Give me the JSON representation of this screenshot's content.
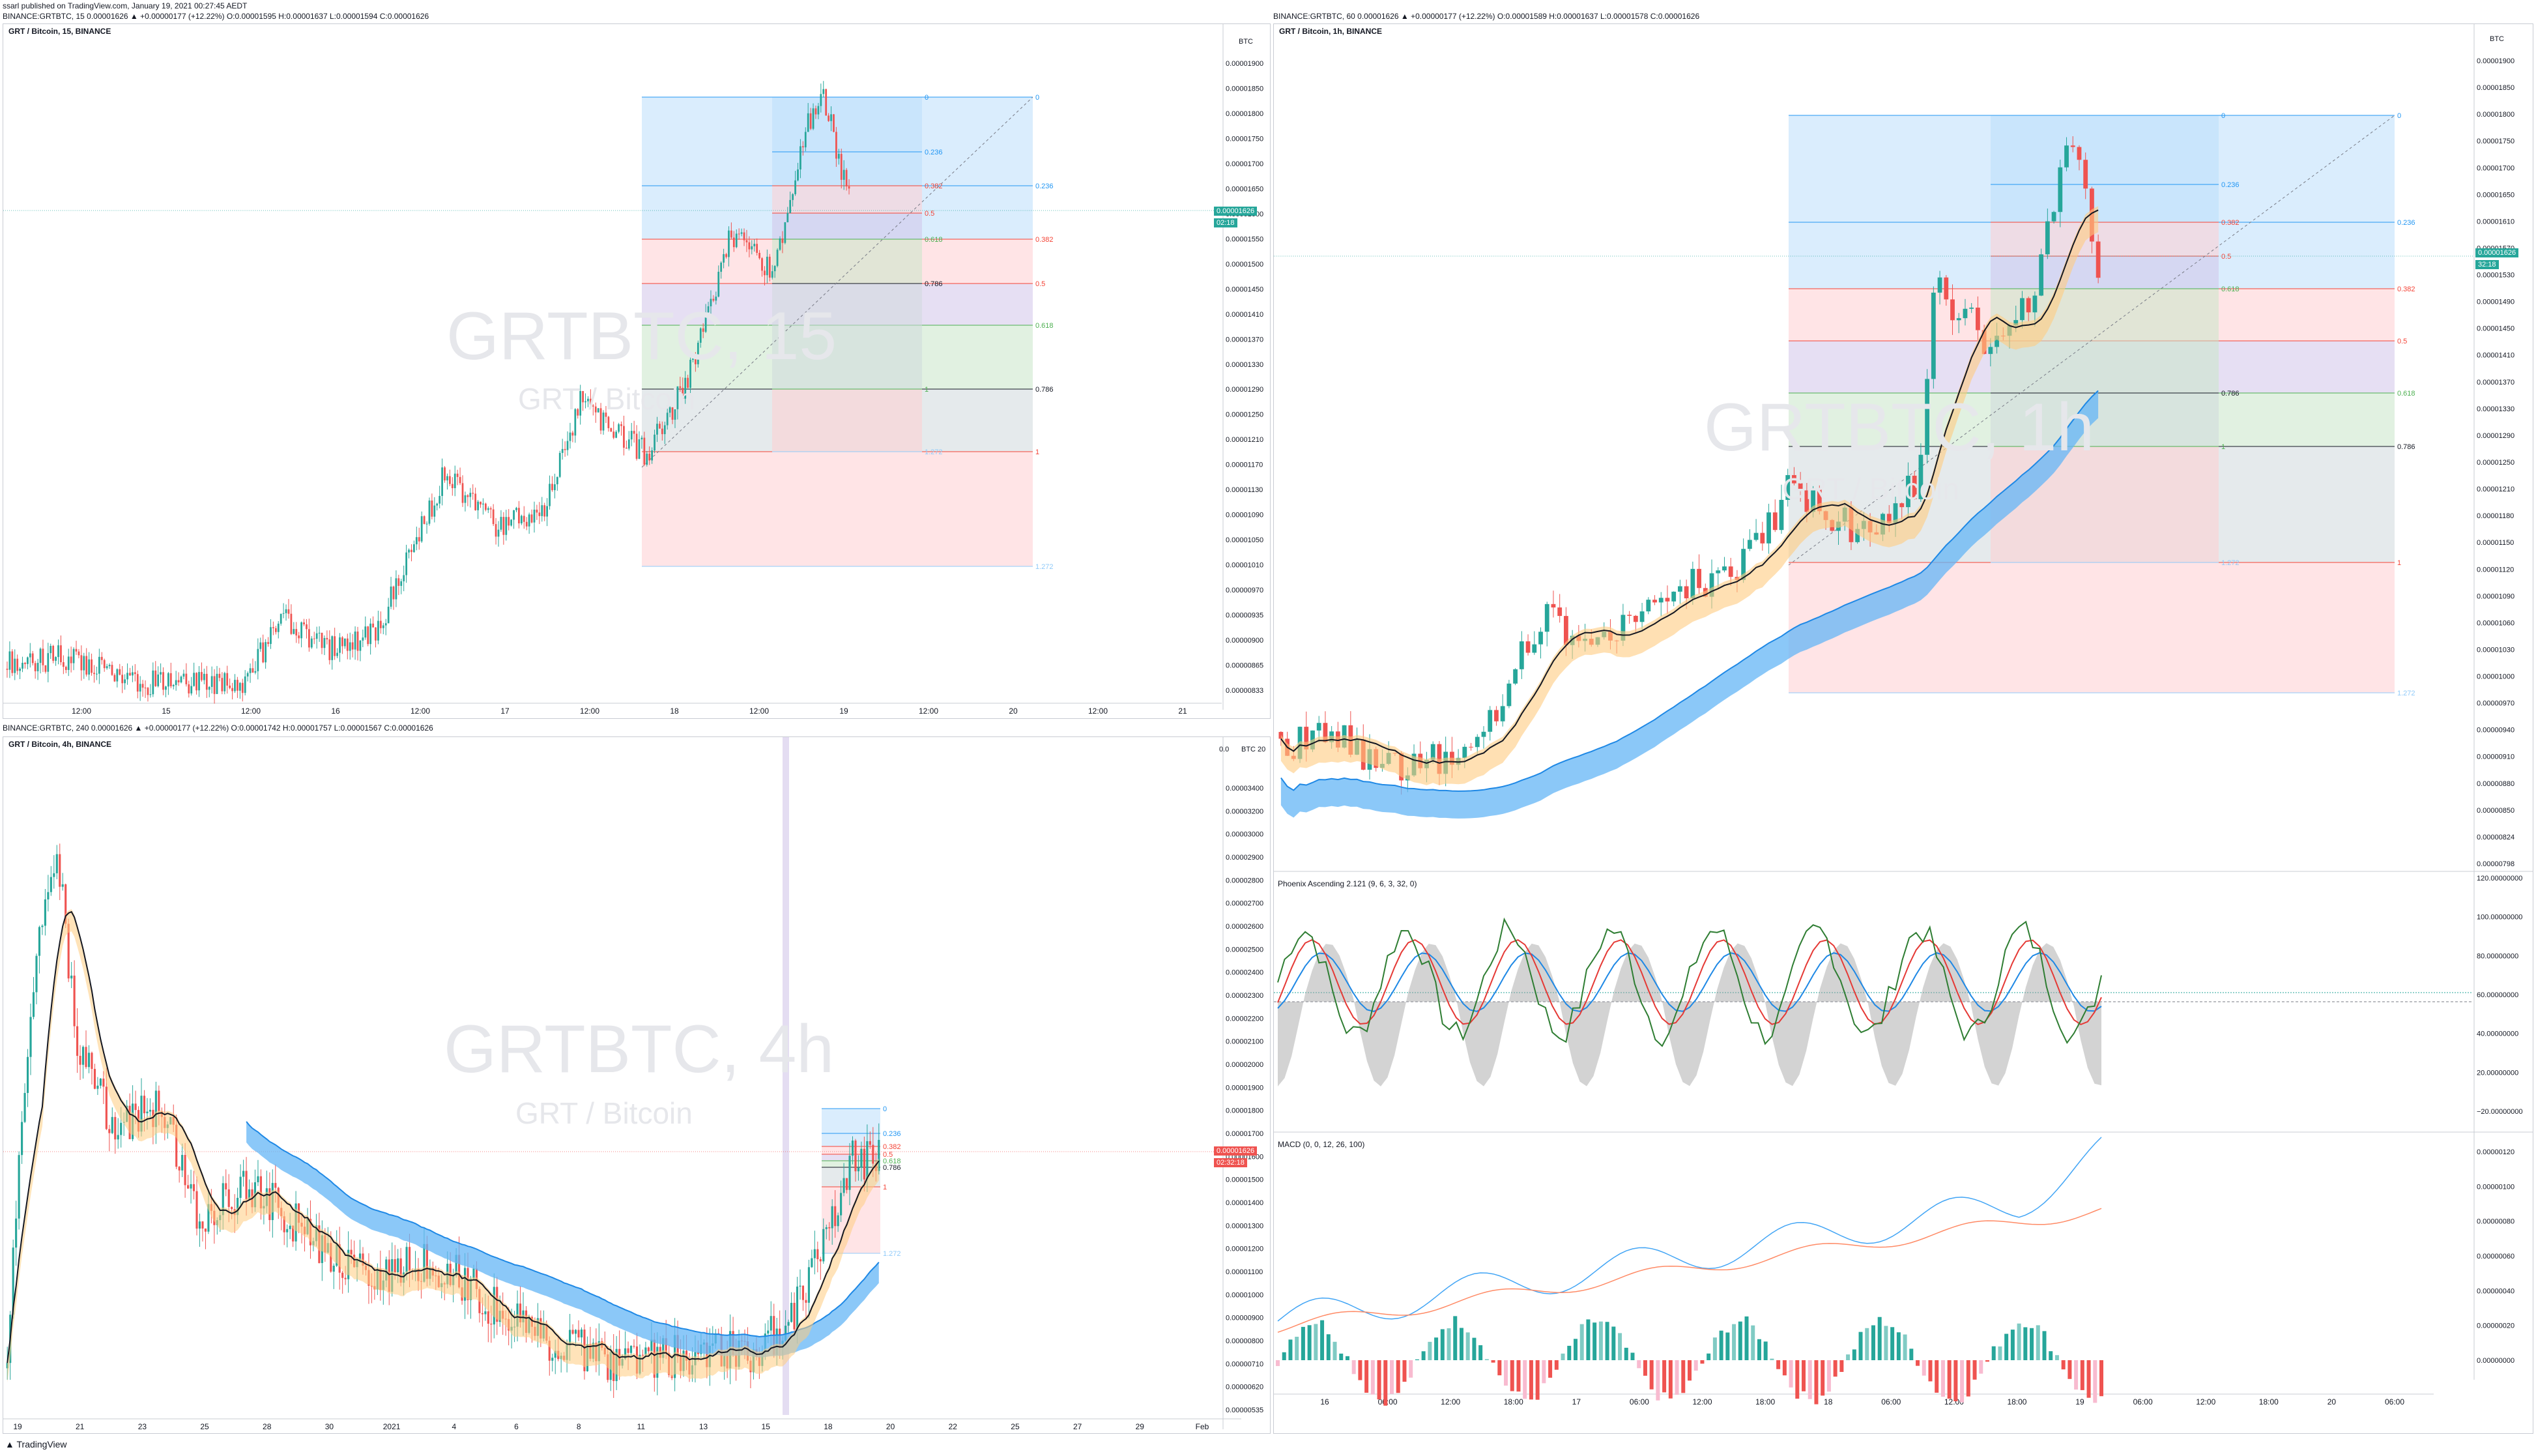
{
  "publish_line": "ssarl published on TradingView.com, January 19, 2021 00:27:45 AEDT",
  "top_left_ohlc": "BINANCE:GRTBTC, 15  0.00001626 ▲ +0.00000177 (+12.22%) O:0.00001595 H:0.00001637 L:0.00001594 C:0.00001626",
  "top_right_ohlc": "BINANCE:GRTBTC, 60  0.00001626 ▲ +0.00000177 (+12.22%) O:0.00001589 H:0.00001637 L:0.00001578 C:0.00001626",
  "bottom_left_ohlc": "BINANCE:GRTBTC, 240  0.00001626 ▲ +0.00000177 (+12.22%) O:0.00001742 H:0.00001757 L:0.00001567 C:0.00001626",
  "tv_logo": "TradingView",
  "panels": {
    "p15": {
      "title": "GRT / Bitcoin, 15, BINANCE",
      "wm_main": "GRTBTC, 15",
      "wm_sub": "GRT / Bitcoin",
      "currency": "BTC",
      "price_badge": "0.00001626",
      "price_sub": "02:18",
      "y_labels": [
        "0.00001900",
        "0.00001850",
        "0.00001800",
        "0.00001750",
        "0.00001700",
        "0.00001650",
        "0.00001600",
        "0.00001550",
        "0.00001500",
        "0.00001450",
        "0.00001410",
        "0.00001370",
        "0.00001330",
        "0.00001290",
        "0.00001250",
        "0.00001210",
        "0.00001170",
        "0.00001130",
        "0.00001090",
        "0.00001050",
        "0.00001010",
        "0.00000970",
        "0.00000935",
        "0.00000900",
        "0.00000865",
        "0.00000833"
      ],
      "x_labels": [
        "12:00",
        "15",
        "12:00",
        "16",
        "12:00",
        "17",
        "12:00",
        "18",
        "12:00",
        "19",
        "12:00",
        "20",
        "12:00",
        "21"
      ],
      "fib_inner": [
        "0",
        "0.236",
        "0.382",
        "0.5",
        "0.618",
        "0.786",
        "1",
        "1.272"
      ],
      "fib_outer": [
        "0",
        "0.236",
        "0.382",
        "0.5",
        "0.618",
        "0.786",
        "1",
        "1.272"
      ]
    },
    "p60": {
      "title": "GRT / Bitcoin, 1h, BINANCE",
      "wm_main": "GRTBTC, 1h",
      "wm_sub": "GRT / Bitcoin",
      "currency": "BTC",
      "price_badge": "0.00001626",
      "price_sub": "32:18",
      "y_labels": [
        "0.00001900",
        "0.00001850",
        "0.00001800",
        "0.00001750",
        "0.00001700",
        "0.00001650",
        "0.00001610",
        "0.00001570",
        "0.00001530",
        "0.00001490",
        "0.00001450",
        "0.00001410",
        "0.00001370",
        "0.00001330",
        "0.00001290",
        "0.00001250",
        "0.00001210",
        "0.00001180",
        "0.00001150",
        "0.00001120",
        "0.00001090",
        "0.00001060",
        "0.00001030",
        "0.00001000",
        "0.00000970",
        "0.00000940",
        "0.00000910",
        "0.00000880",
        "0.00000850",
        "0.00000824",
        "0.00000798"
      ],
      "x_labels": [
        "16",
        "06:00",
        "12:00",
        "18:00",
        "17",
        "06:00",
        "12:00",
        "18:00",
        "18",
        "06:00",
        "12:00",
        "18:00",
        "19",
        "06:00",
        "12:00",
        "18:00",
        "20",
        "06:00"
      ],
      "fib_inner": [
        "0",
        "0.236",
        "0.382",
        "0.5",
        "0.618",
        "0.786",
        "1",
        "1.272"
      ],
      "fib_outer": [
        "0",
        "0.236",
        "0.382",
        "0.5",
        "0.618",
        "0.786",
        "1",
        "1.272"
      ],
      "osc_title": "Phoenix Ascending 2.121 (9, 6, 3, 32, 0)",
      "osc_y_labels": [
        "120.00000000",
        "100.00000000",
        "80.00000000",
        "60.00000000",
        "40.00000000",
        "20.00000000",
        "−20.00000000"
      ],
      "macd_title": "MACD (0, 0, 12, 26, 100)",
      "macd_y_labels": [
        "0.00000120",
        "0.00000100",
        "0.00000080",
        "0.00000060",
        "0.00000040",
        "0.00000020",
        "0.00000000"
      ]
    },
    "p240": {
      "title": "GRT / Bitcoin, 4h, BINANCE",
      "wm_main": "GRTBTC, 4h",
      "wm_sub": "GRT / Bitcoin",
      "currency": "BTC 20",
      "currency_prefix": "0.0",
      "price_badge": "0.00001626",
      "price_sub": "02:32:18",
      "y_labels": [
        "0.00003400",
        "0.00003200",
        "0.00003000",
        "0.00002900",
        "0.00002800",
        "0.00002700",
        "0.00002600",
        "0.00002500",
        "0.00002400",
        "0.00002300",
        "0.00002200",
        "0.00002100",
        "0.00002000",
        "0.00001900",
        "0.00001800",
        "0.00001700",
        "0.00001600",
        "0.00001500",
        "0.00001400",
        "0.00001300",
        "0.00001200",
        "0.00001100",
        "0.00001000",
        "0.00000900",
        "0.00000800",
        "0.00000710",
        "0.00000620",
        "0.00000535"
      ],
      "x_labels": [
        "19",
        "21",
        "23",
        "25",
        "28",
        "30",
        "2021",
        "4",
        "6",
        "8",
        "11",
        "13",
        "15",
        "18",
        "20",
        "22",
        "25",
        "27",
        "29",
        "Feb"
      ],
      "fib_labels": [
        "0",
        "0.236",
        "0.382",
        "0.5",
        "0.618",
        "0.786",
        "1",
        "1.272"
      ]
    }
  },
  "colors": {
    "up": "#26a69a",
    "down": "#ef5350",
    "ma": "#131722",
    "cloud_blue": "#64b5f6",
    "cloud_orange": "#ffcc80",
    "fib_blue": "#bbdefb",
    "fib_red": "#ffcdd2",
    "fib_purple": "#d1c4e9",
    "fib_green": "#c8e6c9",
    "fib_gray": "#cfd8dc"
  }
}
